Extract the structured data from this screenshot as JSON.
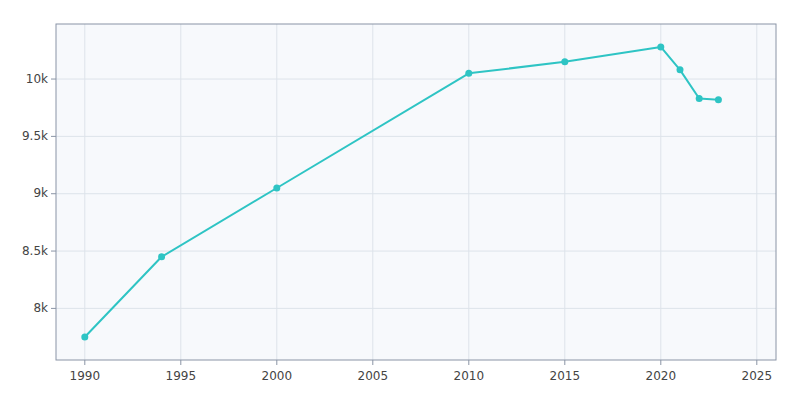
{
  "chart_data": {
    "type": "line",
    "x": [
      1990,
      1994,
      2000,
      2010,
      2015,
      2020,
      2021,
      2022,
      2023
    ],
    "values": [
      7750,
      8450,
      9050,
      10050,
      10150,
      10280,
      10080,
      9830,
      9820
    ],
    "color": "#2EC4C4",
    "marker": "circle",
    "xlim": [
      1988.5,
      2026
    ],
    "ylim": [
      7550,
      10480
    ],
    "xticks": [
      1990,
      1995,
      2000,
      2005,
      2010,
      2015,
      2020,
      2025
    ],
    "yticks": [
      {
        "value": 8000,
        "label": "8k"
      },
      {
        "value": 8500,
        "label": "8.5k"
      },
      {
        "value": 9000,
        "label": "9k"
      },
      {
        "value": 9500,
        "label": "9.5k"
      },
      {
        "value": 10000,
        "label": "10k"
      }
    ],
    "grid": true
  }
}
